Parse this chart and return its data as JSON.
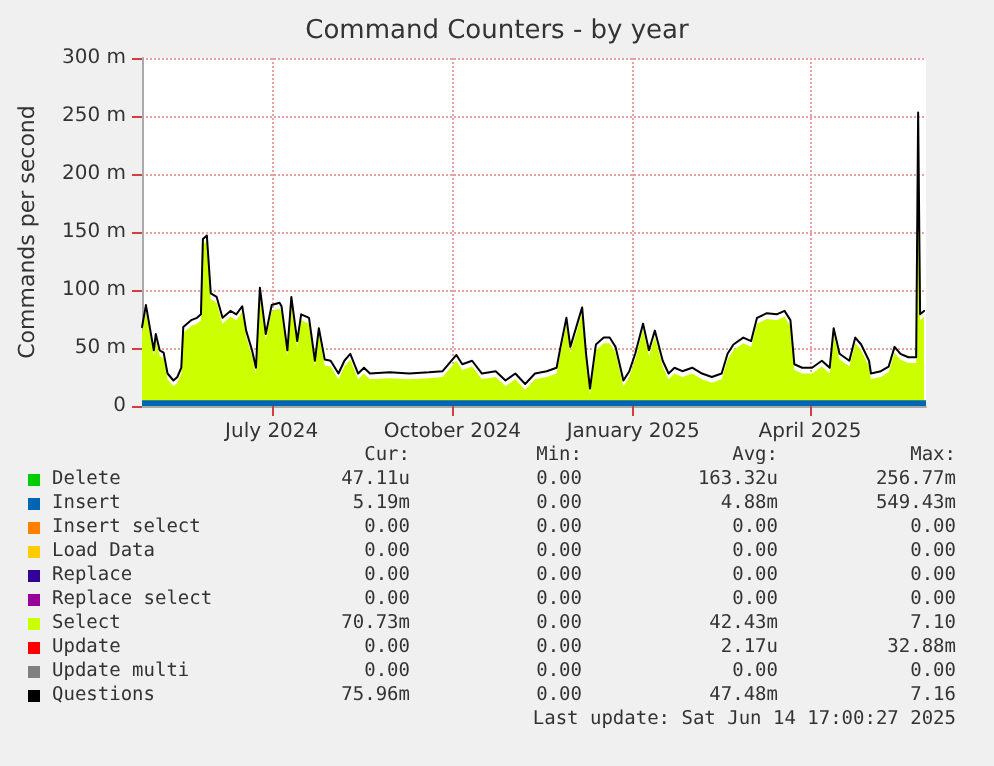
{
  "chart_data": {
    "type": "line",
    "title": "Command Counters - by year",
    "ylabel": "Commands per second",
    "x": [
      "2024-05-11",
      "2024-05-13",
      "2024-05-17",
      "2024-05-18",
      "2024-05-20",
      "2024-05-22",
      "2024-05-24",
      "2024-05-27",
      "2024-05-29",
      "2024-05-31",
      "2024-06-01",
      "2024-06-05",
      "2024-06-08",
      "2024-06-10",
      "2024-06-11",
      "2024-06-13",
      "2024-06-15",
      "2024-06-18",
      "2024-06-21",
      "2024-06-25",
      "2024-06-28",
      "2024-07-01",
      "2024-07-03",
      "2024-07-06",
      "2024-07-08",
      "2024-07-10",
      "2024-07-13",
      "2024-07-16",
      "2024-07-20",
      "2024-07-21",
      "2024-07-24",
      "2024-07-26",
      "2024-07-29",
      "2024-07-31",
      "2024-08-04",
      "2024-08-07",
      "2024-08-09",
      "2024-08-12",
      "2024-08-15",
      "2024-08-19",
      "2024-08-22",
      "2024-08-25",
      "2024-08-29",
      "2024-09-01",
      "2024-09-04",
      "2024-09-14",
      "2024-09-24",
      "2024-10-04",
      "2024-10-11",
      "2024-10-18",
      "2024-10-21",
      "2024-10-26",
      "2024-10-31",
      "2024-11-07",
      "2024-11-12",
      "2024-11-17",
      "2024-11-22",
      "2024-11-27",
      "2024-12-03",
      "2024-12-08",
      "2024-12-10",
      "2024-12-13",
      "2024-12-15",
      "2024-12-18",
      "2024-12-21",
      "2024-12-23",
      "2024-12-25",
      "2024-12-28",
      "2025-01-01",
      "2025-01-04",
      "2025-01-07",
      "2025-01-11",
      "2025-01-14",
      "2025-01-17",
      "2025-01-21",
      "2025-01-24",
      "2025-01-27",
      "2025-01-31",
      "2025-02-03",
      "2025-02-06",
      "2025-02-10",
      "2025-02-15",
      "2025-02-20",
      "2025-02-25",
      "2025-03-02",
      "2025-03-05",
      "2025-03-08",
      "2025-03-13",
      "2025-03-17",
      "2025-03-20",
      "2025-03-25",
      "2025-03-30",
      "2025-04-03",
      "2025-04-06",
      "2025-04-08",
      "2025-04-12",
      "2025-04-17",
      "2025-04-22",
      "2025-04-26",
      "2025-04-28",
      "2025-05-01",
      "2025-05-06",
      "2025-05-09",
      "2025-05-12",
      "2025-05-16",
      "2025-05-17",
      "2025-05-22",
      "2025-05-26",
      "2025-05-29",
      "2025-06-01",
      "2025-06-05",
      "2025-06-09",
      "2025-06-10",
      "2025-06-11",
      "2025-06-13"
    ],
    "series": [
      {
        "name": "Delete",
        "type": "line",
        "color": "#00cc00",
        "values": [
          null,
          null,
          null,
          null,
          null,
          null,
          null,
          null,
          null,
          null,
          null,
          null,
          null,
          null,
          null,
          null,
          null,
          null,
          null,
          null,
          null,
          null,
          null,
          null,
          null,
          null,
          null,
          null,
          null,
          null,
          null,
          null,
          null,
          null,
          null,
          null,
          null,
          null,
          null,
          null,
          null,
          null,
          null,
          null,
          null,
          null,
          null,
          null,
          null,
          null,
          null,
          null,
          null,
          null,
          null,
          null,
          null,
          null,
          null,
          null,
          null,
          null,
          null,
          null,
          null,
          null,
          null,
          null,
          null,
          null,
          null,
          null,
          null,
          null,
          null,
          null,
          null,
          null,
          null,
          null,
          null,
          null,
          null,
          null,
          null,
          null,
          null,
          null,
          null,
          null,
          null,
          null,
          null,
          null,
          null,
          null,
          null,
          null,
          null,
          null,
          null,
          null,
          null,
          null,
          null,
          null,
          null,
          null,
          null,
          null,
          null,
          null,
          null,
          null,
          null
        ]
      },
      {
        "name": "Insert",
        "type": "area",
        "color": "#0066b3",
        "x": [
          "2024-05-11",
          "2025-06-14"
        ],
        "values": [
          5,
          5
        ]
      },
      {
        "name": "Insert select",
        "type": "line",
        "color": "#ff8000",
        "values": [
          null,
          null,
          null,
          null,
          null,
          null,
          null,
          null,
          null,
          null,
          null,
          null,
          null,
          null,
          null,
          null,
          null,
          null,
          null,
          null,
          null,
          null,
          null,
          null,
          null,
          null,
          null,
          null,
          null,
          null,
          null,
          null,
          null,
          null,
          null,
          null,
          null,
          null,
          null,
          null,
          null,
          null,
          null,
          null,
          null,
          null,
          null,
          null,
          null,
          null,
          null,
          null,
          null,
          null,
          null,
          null,
          null,
          null,
          null,
          null,
          null,
          null,
          null,
          null,
          null,
          null,
          null,
          null,
          null,
          null,
          null,
          null,
          null,
          null,
          null,
          null,
          null,
          null,
          null,
          null,
          null,
          null,
          null,
          null,
          null,
          null,
          null,
          null,
          null,
          null,
          null,
          null,
          null,
          null,
          null,
          null,
          null,
          null,
          null,
          null,
          null,
          null,
          null,
          null,
          null,
          null,
          null,
          null,
          null,
          null,
          null,
          null,
          null,
          null,
          null
        ]
      },
      {
        "name": "Load Data",
        "type": "line",
        "color": "#ffcc00",
        "values": [
          null,
          null,
          null,
          null,
          null,
          null,
          null,
          null,
          null,
          null,
          null,
          null,
          null,
          null,
          null,
          null,
          null,
          null,
          null,
          null,
          null,
          null,
          null,
          null,
          null,
          null,
          null,
          null,
          null,
          null,
          null,
          null,
          null,
          null,
          null,
          null,
          null,
          null,
          null,
          null,
          null,
          null,
          null,
          null,
          null,
          null,
          null,
          null,
          null,
          null,
          null,
          null,
          null,
          null,
          null,
          null,
          null,
          null,
          null,
          null,
          null,
          null,
          null,
          null,
          null,
          null,
          null,
          null,
          null,
          null,
          null,
          null,
          null,
          null,
          null,
          null,
          null,
          null,
          null,
          null,
          null,
          null,
          null,
          null,
          null,
          null,
          null,
          null,
          null,
          null,
          null,
          null,
          null,
          null,
          null,
          null,
          null,
          null,
          null,
          null,
          null,
          null,
          null,
          null,
          null,
          null,
          null,
          null,
          null,
          null,
          null,
          null,
          null,
          null,
          null
        ]
      },
      {
        "name": "Replace",
        "type": "line",
        "color": "#330099",
        "values": [
          null,
          null,
          null,
          null,
          null,
          null,
          null,
          null,
          null,
          null,
          null,
          null,
          null,
          null,
          null,
          null,
          null,
          null,
          null,
          null,
          null,
          null,
          null,
          null,
          null,
          null,
          null,
          null,
          null,
          null,
          null,
          null,
          null,
          null,
          null,
          null,
          null,
          null,
          null,
          null,
          null,
          null,
          null,
          null,
          null,
          null,
          null,
          null,
          null,
          null,
          null,
          null,
          null,
          null,
          null,
          null,
          null,
          null,
          null,
          null,
          null,
          null,
          null,
          null,
          null,
          null,
          null,
          null,
          null,
          null,
          null,
          null,
          null,
          null,
          null,
          null,
          null,
          null,
          null,
          null,
          null,
          null,
          null,
          null,
          null,
          null,
          null,
          null,
          null,
          null,
          null,
          null,
          null,
          null,
          null,
          null,
          null,
          null,
          null,
          null,
          null,
          null,
          null,
          null,
          null,
          null,
          null,
          null,
          null,
          null,
          null,
          null,
          null,
          null,
          null
        ]
      },
      {
        "name": "Replace select",
        "type": "line",
        "color": "#990099",
        "values": [
          null,
          null,
          null,
          null,
          null,
          null,
          null,
          null,
          null,
          null,
          null,
          null,
          null,
          null,
          null,
          null,
          null,
          null,
          null,
          null,
          null,
          null,
          null,
          null,
          null,
          null,
          null,
          null,
          null,
          null,
          null,
          null,
          null,
          null,
          null,
          null,
          null,
          null,
          null,
          null,
          null,
          null,
          null,
          null,
          null,
          null,
          null,
          null,
          null,
          null,
          null,
          null,
          null,
          null,
          null,
          null,
          null,
          null,
          null,
          null,
          null,
          null,
          null,
          null,
          null,
          null,
          null,
          null,
          null,
          null,
          null,
          null,
          null,
          null,
          null,
          null,
          null,
          null,
          null,
          null,
          null,
          null,
          null,
          null,
          null,
          null,
          null,
          null,
          null,
          null,
          null,
          null,
          null,
          null,
          null,
          null,
          null,
          null,
          null,
          null,
          null,
          null,
          null,
          null,
          null,
          null,
          null,
          null,
          null,
          null,
          null,
          null,
          null,
          null,
          null
        ]
      },
      {
        "name": "Select",
        "type": "area",
        "color": "#ccff00",
        "values": [
          63,
          82,
          43,
          57,
          43,
          41,
          23,
          17,
          20,
          28,
          63,
          69,
          71,
          74,
          139,
          142,
          92,
          89,
          71,
          77,
          74,
          81,
          60,
          43,
          28,
          97,
          57,
          82,
          84,
          81,
          43,
          89,
          51,
          74,
          71,
          34,
          62,
          35,
          34,
          23,
          34,
          40,
          23,
          28,
          23,
          24,
          23,
          24,
          25,
          39,
          31,
          34,
          23,
          25,
          17,
          23,
          14,
          23,
          25,
          28,
          46,
          71,
          46,
          63,
          80,
          40,
          10,
          48,
          54,
          54,
          46,
          17,
          25,
          40,
          66,
          43,
          60,
          34,
          23,
          28,
          25,
          28,
          23,
          20,
          23,
          40,
          48,
          54,
          51,
          71,
          75,
          74,
          77,
          69,
          31,
          28,
          28,
          34,
          28,
          62,
          40,
          34,
          54,
          48,
          34,
          23,
          25,
          29,
          46,
          40,
          37,
          37,
          248,
          74,
          77
        ]
      },
      {
        "name": "Update",
        "type": "line",
        "color": "#ff0000",
        "values": [
          null,
          null,
          null,
          null,
          null,
          null,
          null,
          null,
          null,
          null,
          null,
          null,
          null,
          null,
          null,
          null,
          null,
          null,
          null,
          null,
          null,
          null,
          null,
          null,
          null,
          null,
          null,
          null,
          null,
          null,
          null,
          null,
          null,
          null,
          null,
          null,
          null,
          null,
          null,
          null,
          null,
          null,
          null,
          null,
          null,
          null,
          null,
          null,
          null,
          null,
          null,
          null,
          null,
          null,
          null,
          null,
          null,
          null,
          null,
          null,
          null,
          null,
          null,
          null,
          null,
          null,
          null,
          null,
          null,
          null,
          null,
          null,
          null,
          null,
          null,
          null,
          null,
          null,
          null,
          null,
          null,
          null,
          null,
          null,
          null,
          null,
          null,
          null,
          null,
          null,
          null,
          null,
          null,
          null,
          null,
          null,
          null,
          null,
          null,
          null,
          null,
          null,
          null,
          null,
          null,
          null,
          null,
          null,
          null,
          null,
          null,
          null,
          null,
          null,
          null
        ]
      },
      {
        "name": "Update multi",
        "type": "line",
        "color": "#808080",
        "values": [
          null,
          null,
          null,
          null,
          null,
          null,
          null,
          null,
          null,
          null,
          null,
          null,
          null,
          null,
          null,
          null,
          null,
          null,
          null,
          null,
          null,
          null,
          null,
          null,
          null,
          null,
          null,
          null,
          null,
          null,
          null,
          null,
          null,
          null,
          null,
          null,
          null,
          null,
          null,
          null,
          null,
          null,
          null,
          null,
          null,
          null,
          null,
          null,
          null,
          null,
          null,
          null,
          null,
          null,
          null,
          null,
          null,
          null,
          null,
          null,
          null,
          null,
          null,
          null,
          null,
          null,
          null,
          null,
          null,
          null,
          null,
          null,
          null,
          null,
          null,
          null,
          null,
          null,
          null,
          null,
          null,
          null,
          null,
          null,
          null,
          null,
          null,
          null,
          null,
          null,
          null,
          null,
          null,
          null,
          null,
          null,
          null,
          null,
          null,
          null,
          null,
          null,
          null,
          null,
          null,
          null,
          null,
          null,
          null,
          null,
          null,
          null,
          null,
          null,
          null
        ]
      },
      {
        "name": "Questions",
        "color": "#000000",
        "values": [
          68,
          87,
          48,
          62,
          48,
          46,
          28,
          22,
          25,
          33,
          68,
          74,
          76,
          79,
          144,
          147,
          97,
          94,
          76,
          82,
          79,
          86,
          65,
          48,
          33,
          102,
          62,
          87,
          89,
          86,
          48,
          94,
          56,
          79,
          76,
          39,
          67,
          40,
          39,
          28,
          39,
          45,
          28,
          33,
          28,
          29,
          28,
          29,
          30,
          44,
          36,
          39,
          28,
          30,
          22,
          28,
          19,
          28,
          30,
          33,
          51,
          76,
          51,
          68,
          85,
          45,
          15,
          53,
          59,
          59,
          51,
          22,
          30,
          45,
          71,
          48,
          65,
          39,
          28,
          33,
          30,
          33,
          28,
          25,
          28,
          45,
          53,
          59,
          56,
          76,
          80,
          79,
          82,
          74,
          36,
          33,
          33,
          39,
          33,
          67,
          45,
          39,
          59,
          53,
          39,
          28,
          30,
          34,
          51,
          45,
          42,
          42,
          253,
          79,
          82
        ]
      }
    ],
    "xlim": [
      "2024-05-11",
      "2025-06-14"
    ],
    "xticks": [
      {
        "value": "2024-07-16",
        "label": "July 2024"
      },
      {
        "value": "2024-10-16",
        "label": "October 2024"
      },
      {
        "value": "2025-01-16",
        "label": "January 2025"
      },
      {
        "value": "2025-04-16",
        "label": "April 2025"
      }
    ],
    "ylim": [
      0,
      300
    ],
    "yticks": [
      {
        "value": 0,
        "label": "0"
      },
      {
        "value": 50,
        "label": "50 m"
      },
      {
        "value": 100,
        "label": "100 m"
      },
      {
        "value": 150,
        "label": "150 m"
      },
      {
        "value": 200,
        "label": "200 m"
      },
      {
        "value": 250,
        "label": "250 m"
      },
      {
        "value": 300,
        "label": "300 m"
      }
    ],
    "grid": true,
    "legend": "bottom",
    "marker": "none",
    "line_style": "solid",
    "annotations": [
      "Cur: Min: Avg: Max:",
      "47.11u 0.00 163.32u 256.77m",
      "5.19m 0.00 4.88m 549.43m",
      "0.00 0.00 0.00 0.00",
      "0.00 0.00 0.00 0.00",
      "0.00 0.00 0.00 0.00",
      "0.00 0.00 0.00 0.00",
      "70.73m 0.00 42.43m 7.10",
      "0.00 0.00 2.17u 32.88m",
      "0.00 0.00 0.00 0.00",
      "75.96m 0.00 47.48m 7.16",
      "Last update: Sat Jun 14 17:00:27 2025"
    ]
  }
}
